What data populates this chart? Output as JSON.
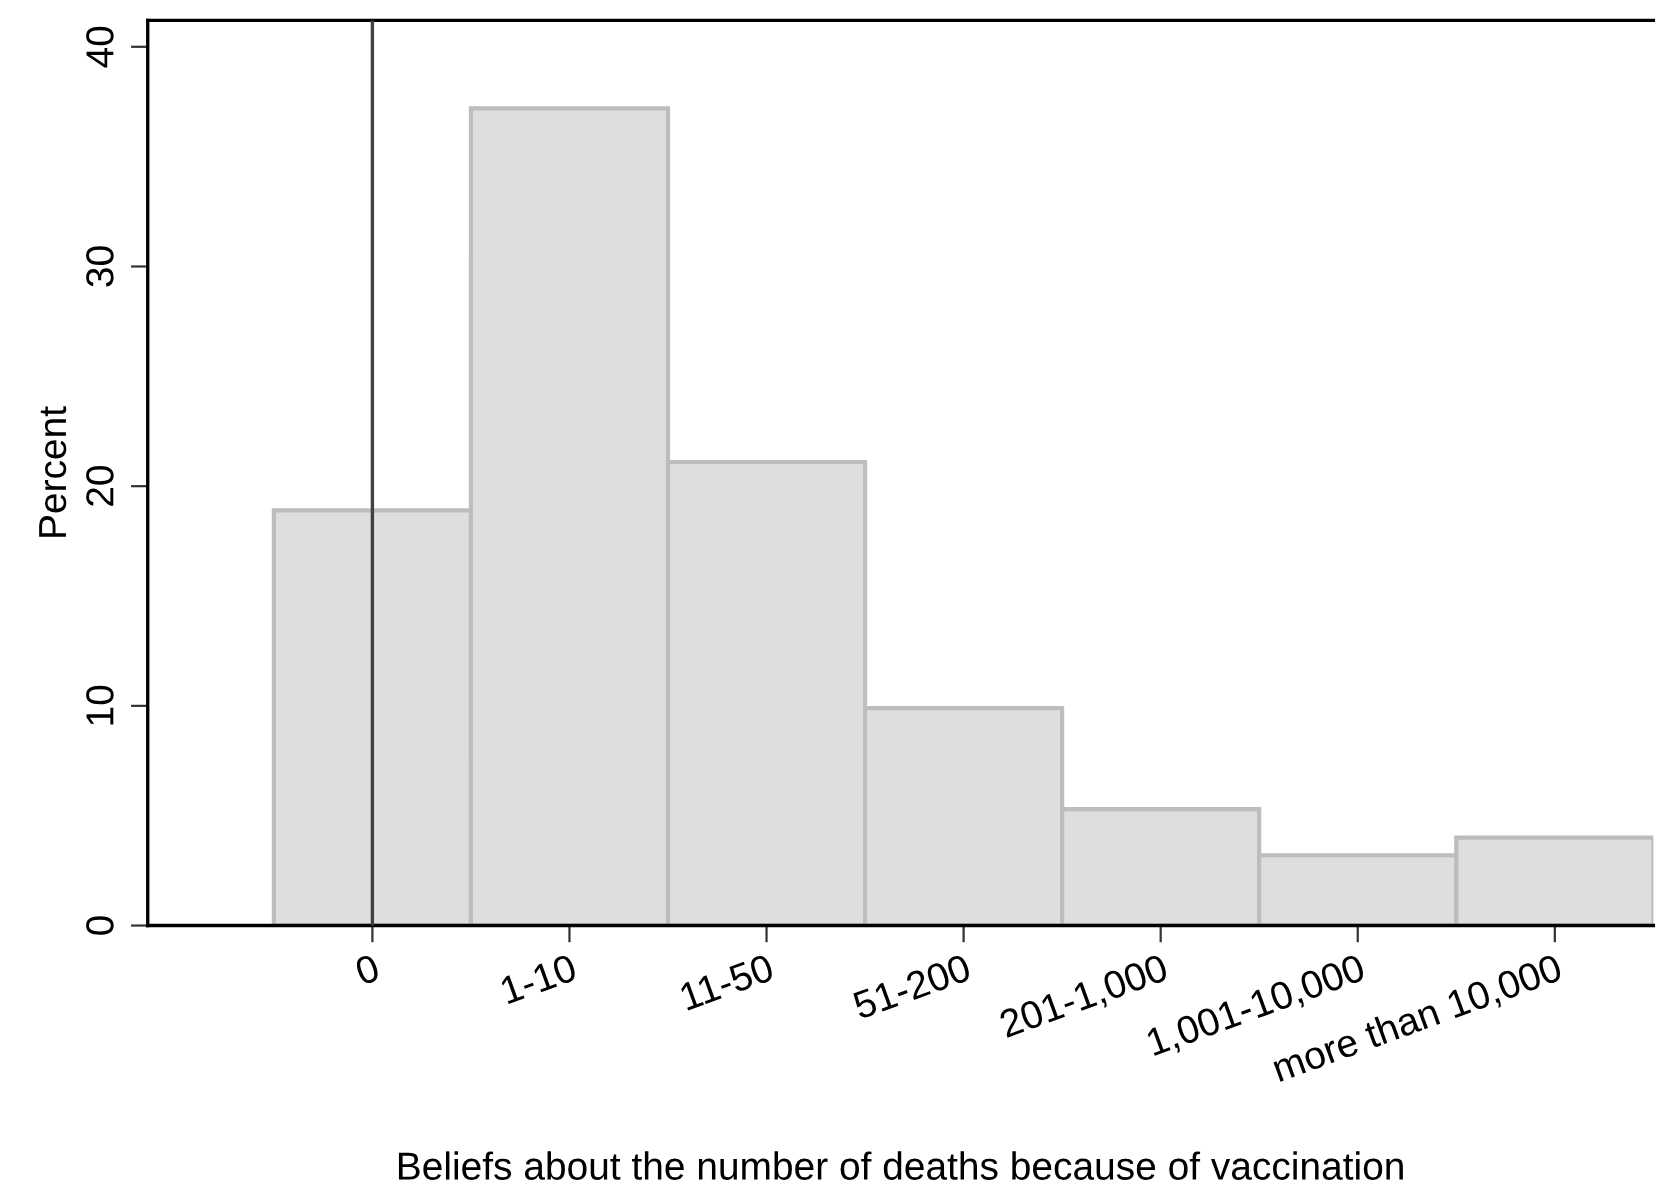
{
  "chart_data": {
    "type": "bar",
    "xlabel": "Beliefs about the number of deaths because of vaccination",
    "ylabel": "Percent",
    "categories": [
      "0",
      "1-10",
      "11-50",
      "51-200",
      "201-1,000",
      "1,001-10,000",
      "more than 10,000"
    ],
    "values": [
      18.9,
      37.2,
      21.1,
      9.9,
      5.3,
      3.2,
      4.0
    ],
    "color": "#dedede",
    "ylim": [
      0,
      41.2
    ],
    "yticks": [
      0,
      10,
      20,
      30,
      40
    ],
    "ref_lines": [
      {
        "axis": "x",
        "value": "0",
        "color": "#404040"
      }
    ],
    "grid": false,
    "legend": false
  }
}
